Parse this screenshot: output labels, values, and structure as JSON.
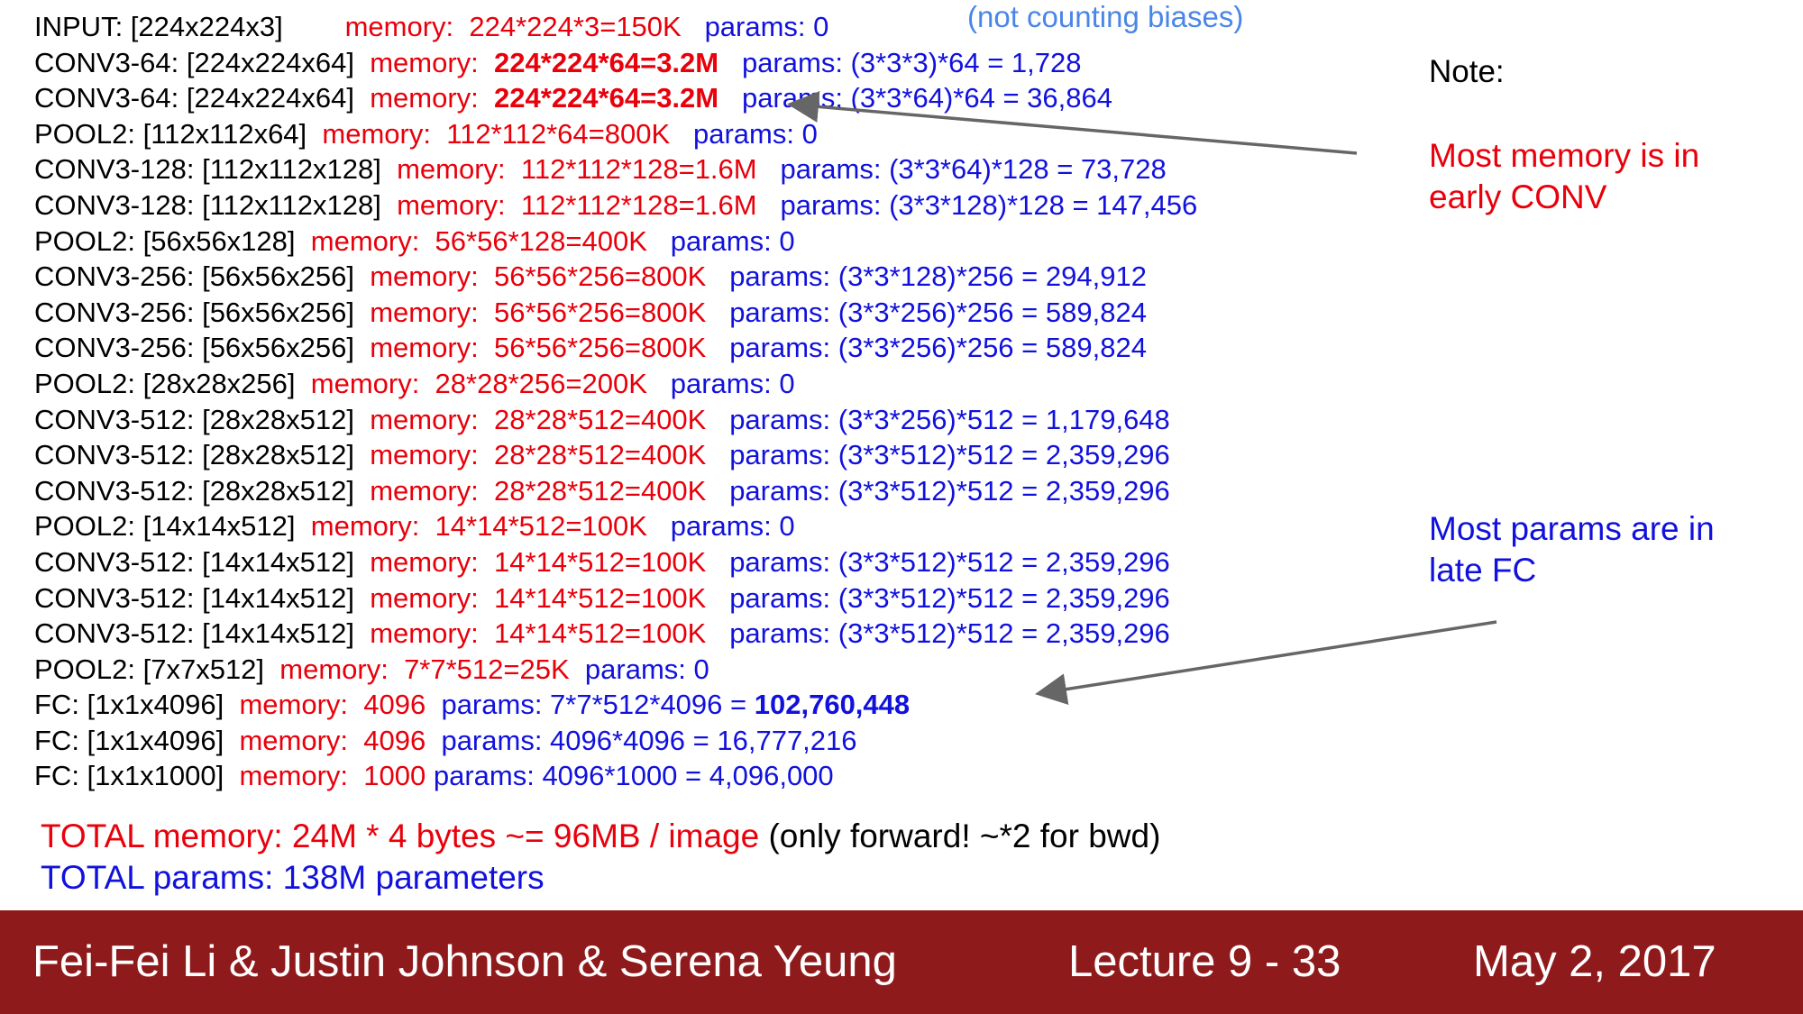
{
  "layers": [
    {
      "layer": "INPUT: [224x224x3]",
      "gap": "        ",
      "memory": "memory:  224*224*3=150K",
      "mem_bold": false,
      "gap2": "   ",
      "params_prefix": "params: 0",
      "params_bold": ""
    },
    {
      "layer": "CONV3-64: [224x224x64]",
      "gap": "  ",
      "memory": "memory:  ",
      "mem_value": "224*224*64=3.2M",
      "mem_bold": true,
      "gap2": "   ",
      "params_prefix": "params: (3*3*3)*64 = 1,728",
      "params_bold": ""
    },
    {
      "layer": "CONV3-64: [224x224x64]",
      "gap": "  ",
      "memory": "memory:  ",
      "mem_value": "224*224*64=3.2M",
      "mem_bold": true,
      "gap2": "   ",
      "params_prefix": "params: (3*3*64)*64 = 36,864",
      "params_bold": ""
    },
    {
      "layer": "POOL2: [112x112x64]",
      "gap": "  ",
      "memory": "memory:  112*112*64=800K",
      "mem_bold": false,
      "gap2": "   ",
      "params_prefix": "params: 0",
      "params_bold": ""
    },
    {
      "layer": "CONV3-128: [112x112x128]",
      "gap": "  ",
      "memory": "memory:  112*112*128=1.6M",
      "mem_bold": false,
      "gap2": "   ",
      "params_prefix": "params: (3*3*64)*128 = 73,728",
      "params_bold": ""
    },
    {
      "layer": "CONV3-128: [112x112x128]",
      "gap": "  ",
      "memory": "memory:  112*112*128=1.6M",
      "mem_bold": false,
      "gap2": "   ",
      "params_prefix": "params: (3*3*128)*128 = 147,456",
      "params_bold": ""
    },
    {
      "layer": "POOL2: [56x56x128]",
      "gap": "  ",
      "memory": "memory:  56*56*128=400K",
      "mem_bold": false,
      "gap2": "   ",
      "params_prefix": "params: 0",
      "params_bold": ""
    },
    {
      "layer": "CONV3-256: [56x56x256]",
      "gap": "  ",
      "memory": "memory:  56*56*256=800K",
      "mem_bold": false,
      "gap2": "   ",
      "params_prefix": "params: (3*3*128)*256 = 294,912",
      "params_bold": ""
    },
    {
      "layer": "CONV3-256: [56x56x256]",
      "gap": "  ",
      "memory": "memory:  56*56*256=800K",
      "mem_bold": false,
      "gap2": "   ",
      "params_prefix": "params: (3*3*256)*256 = 589,824",
      "params_bold": ""
    },
    {
      "layer": "CONV3-256: [56x56x256]",
      "gap": "  ",
      "memory": "memory:  56*56*256=800K",
      "mem_bold": false,
      "gap2": "   ",
      "params_prefix": "params: (3*3*256)*256 = 589,824",
      "params_bold": ""
    },
    {
      "layer": "POOL2: [28x28x256]",
      "gap": "  ",
      "memory": "memory:  28*28*256=200K",
      "mem_bold": false,
      "gap2": "   ",
      "params_prefix": "params: 0",
      "params_bold": ""
    },
    {
      "layer": "CONV3-512: [28x28x512]",
      "gap": "  ",
      "memory": "memory:  28*28*512=400K",
      "mem_bold": false,
      "gap2": "   ",
      "params_prefix": "params: (3*3*256)*512 = 1,179,648",
      "params_bold": ""
    },
    {
      "layer": "CONV3-512: [28x28x512]",
      "gap": "  ",
      "memory": "memory:  28*28*512=400K",
      "mem_bold": false,
      "gap2": "   ",
      "params_prefix": "params: (3*3*512)*512 = 2,359,296",
      "params_bold": ""
    },
    {
      "layer": "CONV3-512: [28x28x512]",
      "gap": "  ",
      "memory": "memory:  28*28*512=400K",
      "mem_bold": false,
      "gap2": "   ",
      "params_prefix": "params: (3*3*512)*512 = 2,359,296",
      "params_bold": ""
    },
    {
      "layer": "POOL2: [14x14x512]",
      "gap": "  ",
      "memory": "memory:  14*14*512=100K",
      "mem_bold": false,
      "gap2": "   ",
      "params_prefix": "params: 0",
      "params_bold": ""
    },
    {
      "layer": "CONV3-512: [14x14x512]",
      "gap": "  ",
      "memory": "memory:  14*14*512=100K",
      "mem_bold": false,
      "gap2": "   ",
      "params_prefix": "params: (3*3*512)*512 = 2,359,296",
      "params_bold": ""
    },
    {
      "layer": "CONV3-512: [14x14x512]",
      "gap": "  ",
      "memory": "memory:  14*14*512=100K",
      "mem_bold": false,
      "gap2": "   ",
      "params_prefix": "params: (3*3*512)*512 = 2,359,296",
      "params_bold": ""
    },
    {
      "layer": "CONV3-512: [14x14x512]",
      "gap": "  ",
      "memory": "memory:  14*14*512=100K",
      "mem_bold": false,
      "gap2": "   ",
      "params_prefix": "params: (3*3*512)*512 = 2,359,296",
      "params_bold": ""
    },
    {
      "layer": "POOL2: [7x7x512]",
      "gap": "  ",
      "memory": "memory:  7*7*512=25K",
      "mem_bold": false,
      "gap2": "  ",
      "params_prefix": "params: 0",
      "params_bold": ""
    },
    {
      "layer": "FC: [1x1x4096]",
      "gap": "  ",
      "memory": "memory:  4096",
      "mem_bold": false,
      "gap2": "  ",
      "params_prefix": "params: 7*7*512*4096 = ",
      "params_bold": "102,760,448"
    },
    {
      "layer": "FC: [1x1x4096]",
      "gap": "  ",
      "memory": "memory:  4096",
      "mem_bold": false,
      "gap2": "  ",
      "params_prefix": "params: 4096*4096 = 16,777,216",
      "params_bold": ""
    },
    {
      "layer": "FC: [1x1x1000]",
      "gap": "  ",
      "memory": "memory:  1000",
      "mem_bold": false,
      "gap2": " ",
      "params_prefix": "params: 4096*1000 = 4,096,000",
      "params_bold": ""
    }
  ],
  "biases_note": "(not counting biases)",
  "note_label": "Note:",
  "callout_memory": "Most memory is in early CONV",
  "callout_params": "Most params are in late FC",
  "totals": {
    "memory_red": "TOTAL memory: 24M * 4 bytes ~= 96MB / image",
    "memory_black": " (only forward! ~*2 for bwd)",
    "params": "TOTAL params: 138M parameters"
  },
  "footer": {
    "authors": "Fei-Fei Li & Justin Johnson & Serena Yeung",
    "lecture": "Lecture 9 - 33",
    "date": "May 2, 2017"
  },
  "colors": {
    "memory_red": "#e8000b",
    "params_blue": "#1111dd",
    "biases_blue": "#4a86e8",
    "footer_bg": "#8f1a1c",
    "arrow_gray": "#666666"
  }
}
